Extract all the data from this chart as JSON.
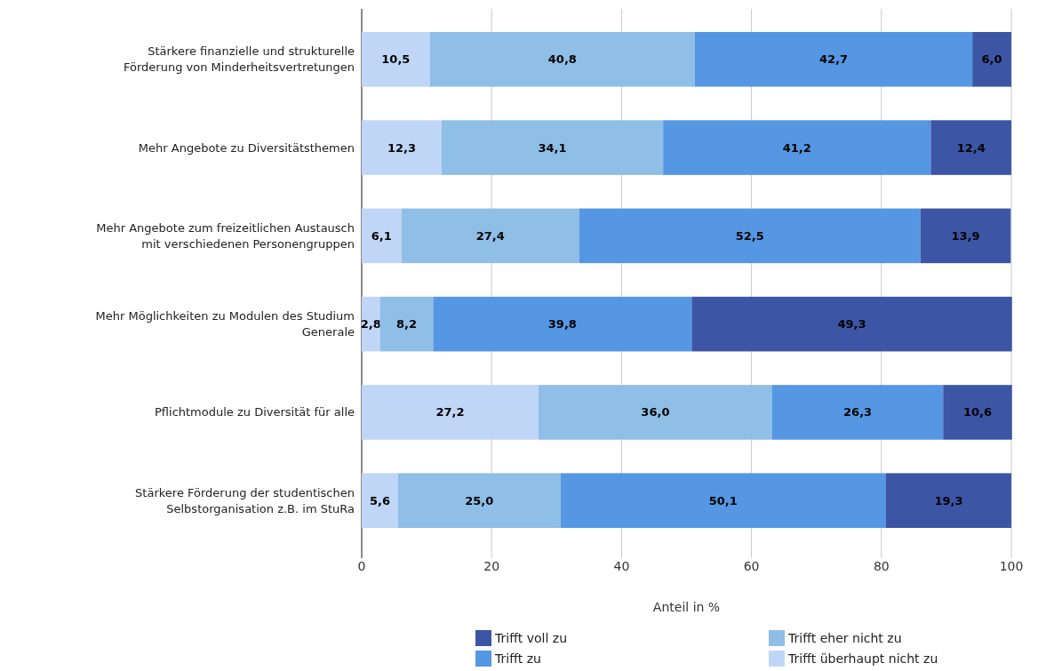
{
  "chart_data": {
    "type": "bar",
    "orientation": "horizontal",
    "stacked": true,
    "xlabel": "Anteil in %",
    "categories": [
      "Stärkere finanzielle und strukturelle Förderung von Minderheitsvertretungen",
      "Mehr Angebote zu Diversitätsthemen",
      "Mehr Angebote zum freizeitlichen Austausch mit verschiedenen Personengruppen",
      "Mehr Möglichkeiten zu Modulen des Studium Generale",
      "Pflichtmodule zu Diversität für alle",
      "Stärkere Förderung der studentischen Selbstorganisation z.B. im StuRa"
    ],
    "series": [
      {
        "name": "Trifft überhaupt nicht zu",
        "color": "#bfd6f6",
        "values": [
          10.5,
          12.3,
          6.1,
          2.8,
          27.2,
          5.6
        ],
        "value_labels": [
          "10,5",
          "12,3",
          "6,1",
          "2,8",
          "27,2",
          "5,6"
        ]
      },
      {
        "name": "Trifft eher nicht zu",
        "color": "#8fbee6",
        "values": [
          40.8,
          34.1,
          27.4,
          8.2,
          36.0,
          25.0
        ],
        "value_labels": [
          "40,8",
          "34,1",
          "27,4",
          "8,2",
          "36,0",
          "25,0"
        ]
      },
      {
        "name": "Trifft zu",
        "color": "#5597e2",
        "values": [
          42.7,
          41.2,
          52.5,
          39.8,
          26.3,
          50.1
        ],
        "value_labels": [
          "42,7",
          "41,2",
          "52,5",
          "39,8",
          "26,3",
          "50,1"
        ]
      },
      {
        "name": "Trifft voll zu",
        "color": "#3c55a5",
        "values": [
          6.0,
          12.4,
          13.9,
          49.3,
          10.6,
          19.3
        ],
        "value_labels": [
          "6,0",
          "12,4",
          "13,9",
          "49,3",
          "10,6",
          "19,3"
        ]
      }
    ],
    "xlim": [
      0,
      100
    ],
    "xticks": [
      0,
      20,
      40,
      60,
      80,
      100
    ],
    "grid": "x",
    "legend": "bottom"
  }
}
